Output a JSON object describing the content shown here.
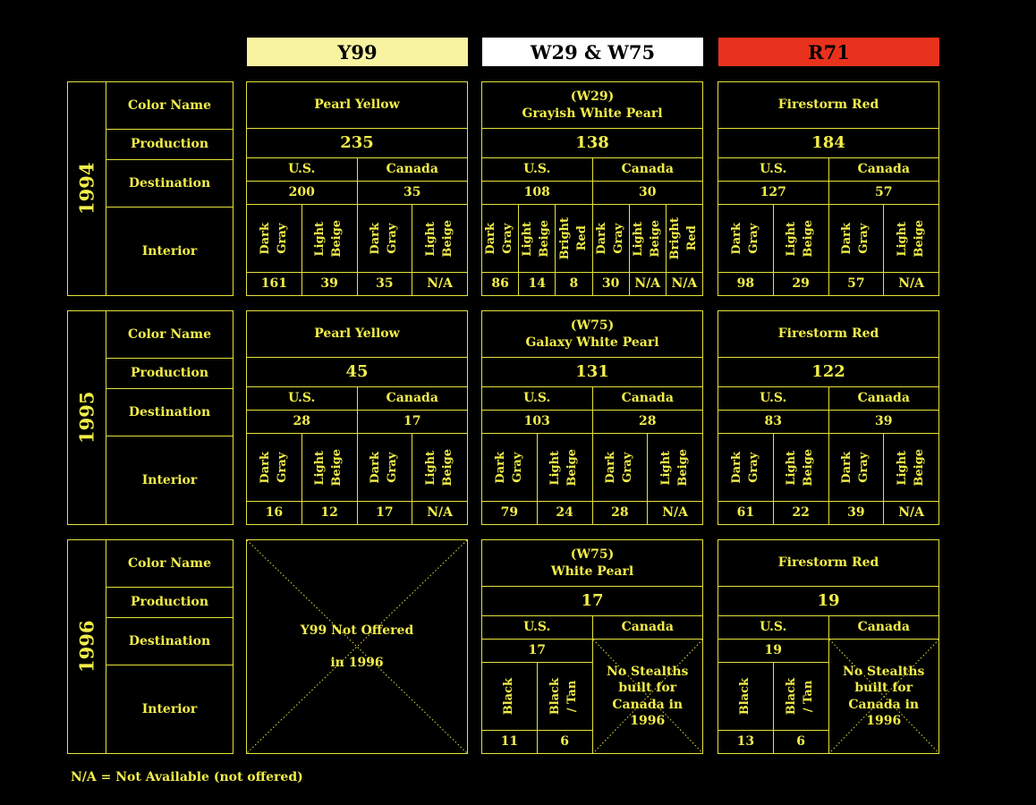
{
  "headers": [
    {
      "code": "Y99",
      "color": "#f7f3a0"
    },
    {
      "code": "W29 & W75",
      "color": "#ffffff"
    },
    {
      "code": "R71",
      "color": "#e8321e"
    }
  ],
  "row_labels": {
    "color_name": "Color Name",
    "production": "Production",
    "destination": "Destination",
    "interior": "Interior"
  },
  "years": [
    {
      "year": "1994",
      "panels": [
        {
          "color_name": "Pearl Yellow",
          "production": "235",
          "us": {
            "label": "U.S.",
            "value": "200",
            "interiors": [
              {
                "name": "Dark\nGray",
                "value": "161"
              },
              {
                "name": "Light\nBeige",
                "value": "39"
              }
            ]
          },
          "canada": {
            "label": "Canada",
            "value": "35",
            "interiors": [
              {
                "name": "Dark\nGray",
                "value": "35"
              },
              {
                "name": "Light\nBeige",
                "value": "N/A"
              }
            ]
          }
        },
        {
          "color_name": "(W29)\nGrayish White Pearl",
          "production": "138",
          "us": {
            "label": "U.S.",
            "value": "108",
            "interiors": [
              {
                "name": "Dark\nGray",
                "value": "86"
              },
              {
                "name": "Light\nBeige",
                "value": "14"
              },
              {
                "name": "Bright\nRed",
                "value": "8"
              }
            ]
          },
          "canada": {
            "label": "Canada",
            "value": "30",
            "interiors": [
              {
                "name": "Dark\nGray",
                "value": "30"
              },
              {
                "name": "Light\nBeige",
                "value": "N/A"
              },
              {
                "name": "Bright\nRed",
                "value": "N/A"
              }
            ]
          }
        },
        {
          "color_name": "Firestorm Red",
          "production": "184",
          "us": {
            "label": "U.S.",
            "value": "127",
            "interiors": [
              {
                "name": "Dark\nGray",
                "value": "98"
              },
              {
                "name": "Light\nBeige",
                "value": "29"
              }
            ]
          },
          "canada": {
            "label": "Canada",
            "value": "57",
            "interiors": [
              {
                "name": "Dark\nGray",
                "value": "57"
              },
              {
                "name": "Light\nBeige",
                "value": "N/A"
              }
            ]
          }
        }
      ]
    },
    {
      "year": "1995",
      "panels": [
        {
          "color_name": "Pearl Yellow",
          "production": "45",
          "us": {
            "label": "U.S.",
            "value": "28",
            "interiors": [
              {
                "name": "Dark\nGray",
                "value": "16"
              },
              {
                "name": "Light\nBeige",
                "value": "12"
              }
            ]
          },
          "canada": {
            "label": "Canada",
            "value": "17",
            "interiors": [
              {
                "name": "Dark\nGray",
                "value": "17"
              },
              {
                "name": "Light\nBeige",
                "value": "N/A"
              }
            ]
          }
        },
        {
          "color_name": "(W75)\nGalaxy White Pearl",
          "production": "131",
          "us": {
            "label": "U.S.",
            "value": "103",
            "interiors": [
              {
                "name": "Dark\nGray",
                "value": "79"
              },
              {
                "name": "Light\nBeige",
                "value": "24"
              }
            ]
          },
          "canada": {
            "label": "Canada",
            "value": "28",
            "interiors": [
              {
                "name": "Dark\nGray",
                "value": "28"
              },
              {
                "name": "Light\nBeige",
                "value": "N/A"
              }
            ]
          }
        },
        {
          "color_name": "Firestorm Red",
          "production": "122",
          "us": {
            "label": "U.S.",
            "value": "83",
            "interiors": [
              {
                "name": "Dark\nGray",
                "value": "61"
              },
              {
                "name": "Light\nBeige",
                "value": "22"
              }
            ]
          },
          "canada": {
            "label": "Canada",
            "value": "39",
            "interiors": [
              {
                "name": "Dark\nGray",
                "value": "39"
              },
              {
                "name": "Light\nBeige",
                "value": "N/A"
              }
            ]
          }
        }
      ]
    },
    {
      "year": "1996",
      "panels": [
        {
          "not_offered": "Y99 Not Offered\n\nin 1996"
        },
        {
          "color_name": "(W75)\nWhite Pearl",
          "production": "17",
          "us": {
            "label": "U.S.",
            "value": "17",
            "interiors": [
              {
                "name": "Black",
                "value": "11"
              },
              {
                "name": "Black\n/ Tan",
                "value": "6"
              }
            ]
          },
          "canada": {
            "label": "Canada",
            "note": "No Stealths\nbuilt for\nCanada in\n1996"
          }
        },
        {
          "color_name": "Firestorm Red",
          "production": "19",
          "us": {
            "label": "U.S.",
            "value": "19",
            "interiors": [
              {
                "name": "Black",
                "value": "13"
              },
              {
                "name": "Black\n/ Tan",
                "value": "6"
              }
            ]
          },
          "canada": {
            "label": "Canada",
            "note": "No Stealths\nbuilt for\nCanada in\n1996"
          }
        }
      ]
    }
  ],
  "legend": "N/A = Not Available (not offered)"
}
